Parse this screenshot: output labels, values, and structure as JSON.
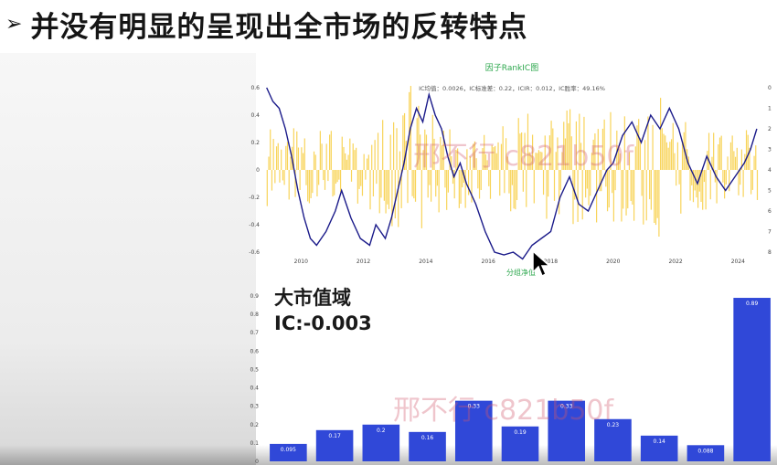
{
  "slide": {
    "title": "并没有明显的呈现出全市场的反转特点",
    "bullet_icon": "arrow-bullet-icon"
  },
  "watermark": "邢不行 c821b50f",
  "metric": {
    "label": "大市值域",
    "ic_text": "IC:-0.003"
  },
  "colors": {
    "accent": "#3048d8",
    "ic_bar": "#f6c623",
    "ic_line": "#1b1b8a",
    "title_green": "#2fa84f"
  },
  "chart_data": [
    {
      "type": "line",
      "title": "因子RankIC图",
      "subtitle": "IC均值：0.0026，IC标准差：0.22，ICIR：0.012，IC胜率：49.16%",
      "xlabel": "分组净值",
      "x_ticks": [
        "2010",
        "2012",
        "2014",
        "2016",
        "2018",
        "2020",
        "2022",
        "2024"
      ],
      "y_left_ticks": [
        "0.6",
        "0.4",
        "0.2",
        "0",
        "-0.2",
        "-0.4",
        "-0.6"
      ],
      "y_left_range": [
        -0.6,
        0.6
      ],
      "y_right_ticks": [
        "0",
        "1",
        "2",
        "3",
        "4",
        "5",
        "6",
        "7",
        "8"
      ],
      "y_right_range": [
        0,
        8
      ],
      "series": [
        {
          "kind": "bars",
          "color": "#f6c623",
          "x_range": [
            2008.9,
            2024.6
          ],
          "sample_amplitude_points": [
            [
              2008.9,
              0.32
            ],
            [
              2010,
              0.3
            ],
            [
              2012,
              0.28
            ],
            [
              2013.5,
              0.62
            ],
            [
              2014.5,
              0.38
            ],
            [
              2016,
              0.28
            ],
            [
              2017.5,
              0.45
            ],
            [
              2019,
              0.45
            ],
            [
              2020.5,
              0.42
            ],
            [
              2021.5,
              0.55
            ],
            [
              2022.5,
              0.35
            ],
            [
              2024.6,
              0.3
            ]
          ]
        },
        {
          "kind": "line",
          "color": "#1b1b8a",
          "points": [
            [
              2008.9,
              0.6
            ],
            [
              2009.1,
              0.5
            ],
            [
              2009.3,
              0.45
            ],
            [
              2009.5,
              0.3
            ],
            [
              2009.7,
              0.1
            ],
            [
              2009.9,
              -0.15
            ],
            [
              2010.1,
              -0.35
            ],
            [
              2010.3,
              -0.5
            ],
            [
              2010.5,
              -0.55
            ],
            [
              2010.8,
              -0.45
            ],
            [
              2011.1,
              -0.3
            ],
            [
              2011.3,
              -0.15
            ],
            [
              2011.6,
              -0.35
            ],
            [
              2011.9,
              -0.5
            ],
            [
              2012.2,
              -0.55
            ],
            [
              2012.4,
              -0.4
            ],
            [
              2012.7,
              -0.5
            ],
            [
              2012.9,
              -0.35
            ],
            [
              2013.1,
              -0.15
            ],
            [
              2013.3,
              0.05
            ],
            [
              2013.5,
              0.3
            ],
            [
              2013.7,
              0.45
            ],
            [
              2013.9,
              0.35
            ],
            [
              2014.1,
              0.55
            ],
            [
              2014.3,
              0.4
            ],
            [
              2014.5,
              0.3
            ],
            [
              2014.7,
              0.1
            ],
            [
              2014.9,
              -0.05
            ],
            [
              2015.1,
              0.05
            ],
            [
              2015.3,
              -0.1
            ],
            [
              2015.6,
              -0.25
            ],
            [
              2015.9,
              -0.45
            ],
            [
              2016.2,
              -0.6
            ],
            [
              2016.5,
              -0.62
            ],
            [
              2016.8,
              -0.6
            ],
            [
              2017.1,
              -0.65
            ],
            [
              2017.4,
              -0.55
            ],
            [
              2017.7,
              -0.5
            ],
            [
              2018.0,
              -0.45
            ],
            [
              2018.3,
              -0.2
            ],
            [
              2018.6,
              -0.05
            ],
            [
              2018.9,
              -0.25
            ],
            [
              2019.2,
              -0.3
            ],
            [
              2019.5,
              -0.15
            ],
            [
              2019.8,
              0.0
            ],
            [
              2020.0,
              0.05
            ],
            [
              2020.3,
              0.25
            ],
            [
              2020.6,
              0.35
            ],
            [
              2020.9,
              0.2
            ],
            [
              2021.2,
              0.4
            ],
            [
              2021.5,
              0.3
            ],
            [
              2021.8,
              0.45
            ],
            [
              2022.1,
              0.3
            ],
            [
              2022.4,
              0.05
            ],
            [
              2022.7,
              -0.1
            ],
            [
              2023.0,
              0.1
            ],
            [
              2023.3,
              -0.05
            ],
            [
              2023.6,
              -0.15
            ],
            [
              2023.9,
              -0.05
            ],
            [
              2024.2,
              0.05
            ],
            [
              2024.4,
              0.15
            ],
            [
              2024.6,
              0.3
            ]
          ]
        }
      ]
    },
    {
      "type": "bar",
      "y_ticks": [
        "0.9",
        "0.8",
        "0.7",
        "0.6",
        "0.5",
        "0.4",
        "0.3",
        "0.2",
        "0.1",
        "0"
      ],
      "ylim": [
        0,
        0.92
      ],
      "values": [
        0.095,
        0.17,
        0.2,
        0.16,
        0.33,
        0.19,
        0.33,
        0.23,
        0.14,
        0.088,
        0.89
      ],
      "value_labels": [
        "0.095",
        "0.17",
        "0.2",
        "0.16",
        "0.33",
        "0.19",
        "0.33",
        "0.23",
        "0.14",
        "0.088",
        "0.89"
      ],
      "color": "#3048d8"
    }
  ]
}
